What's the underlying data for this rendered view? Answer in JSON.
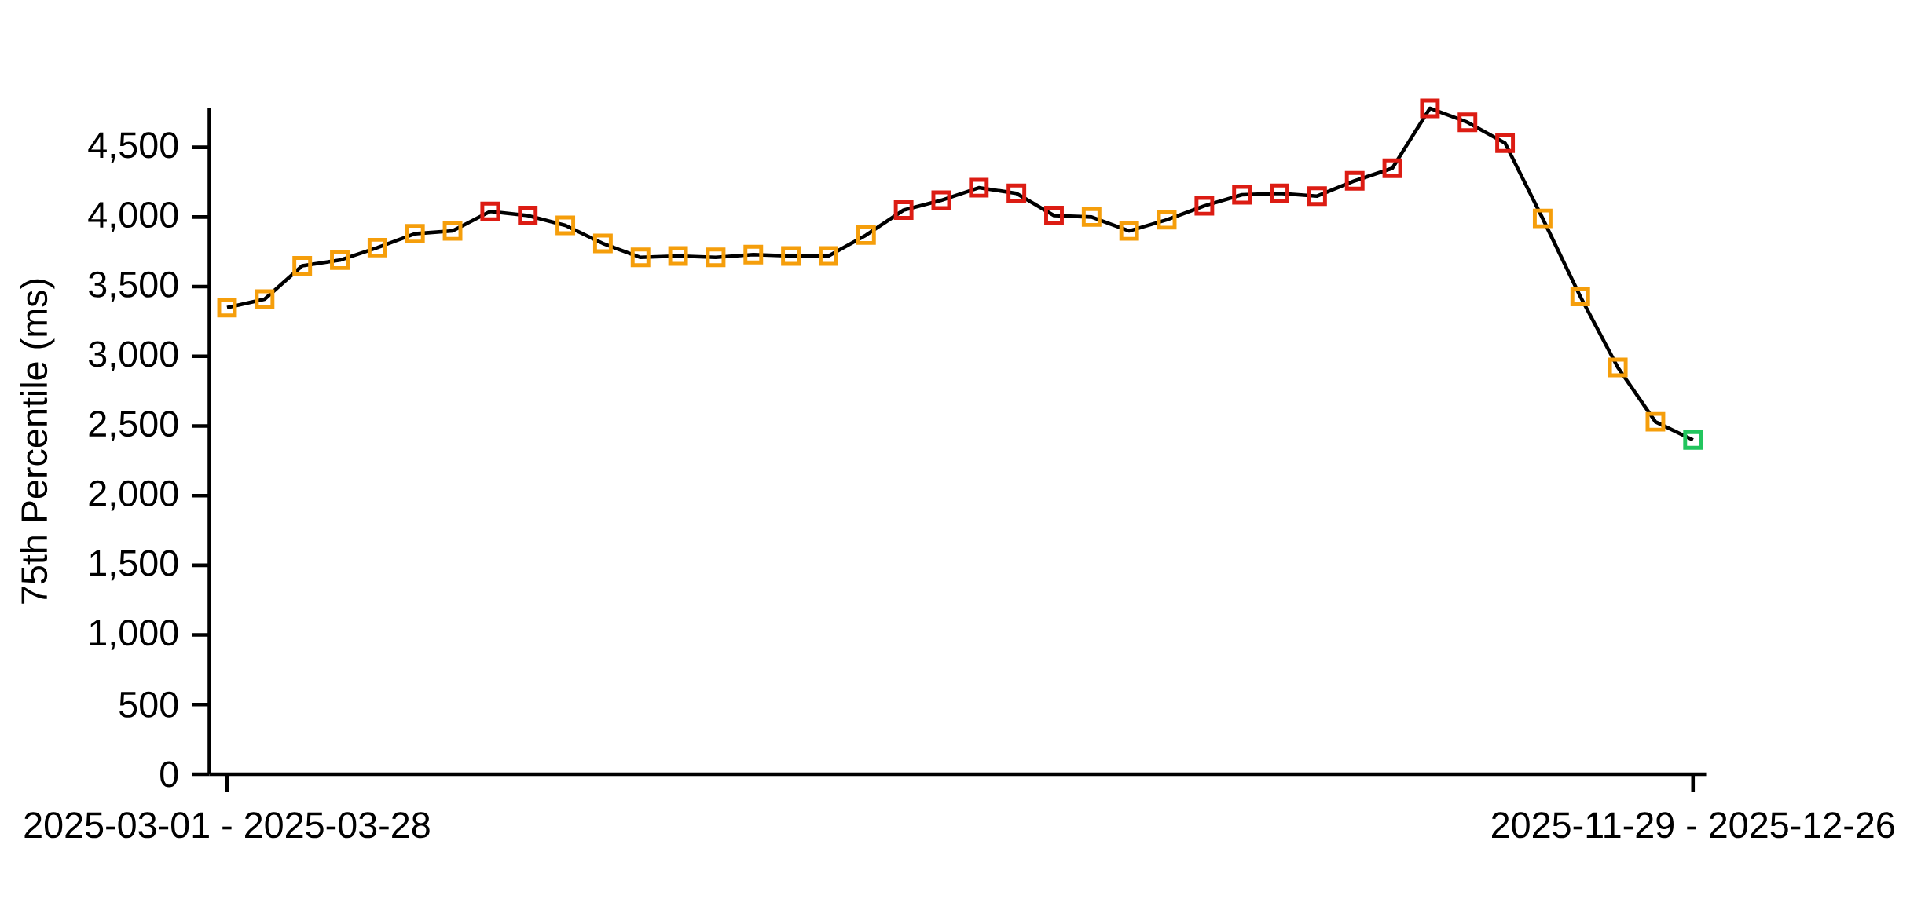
{
  "chart_data": {
    "type": "line",
    "ylabel": "75th Percentile (ms)",
    "categories": [
      "2025-03-01 - 2025-03-28",
      null,
      null,
      null,
      null,
      null,
      null,
      null,
      null,
      null,
      null,
      null,
      null,
      null,
      null,
      null,
      null,
      null,
      null,
      null,
      null,
      null,
      null,
      null,
      null,
      null,
      null,
      null,
      null,
      null,
      null,
      null,
      null,
      null,
      null,
      null,
      null,
      null,
      null,
      "2025-11-29 - 2025-12-26"
    ],
    "values": [
      3350,
      3410,
      3650,
      3690,
      3780,
      3880,
      3900,
      4040,
      4010,
      3940,
      3810,
      3710,
      3720,
      3710,
      3730,
      3720,
      3720,
      3870,
      4050,
      4120,
      4210,
      4170,
      4010,
      4000,
      3900,
      3980,
      4080,
      4160,
      4170,
      4150,
      4260,
      4350,
      4780,
      4680,
      4530,
      3990,
      3430,
      2920,
      2530,
      2400
    ],
    "color": "#000000",
    "colors": [
      "#f59e0b",
      "#f59e0b",
      "#f59e0b",
      "#f59e0b",
      "#f59e0b",
      "#f59e0b",
      "#f59e0b",
      "#dc1c13",
      "#dc1c13",
      "#f59e0b",
      "#f59e0b",
      "#f59e0b",
      "#f59e0b",
      "#f59e0b",
      "#f59e0b",
      "#f59e0b",
      "#f59e0b",
      "#f59e0b",
      "#dc1c13",
      "#dc1c13",
      "#dc1c13",
      "#dc1c13",
      "#dc1c13",
      "#f59e0b",
      "#f59e0b",
      "#f59e0b",
      "#dc1c13",
      "#dc1c13",
      "#dc1c13",
      "#dc1c13",
      "#dc1c13",
      "#dc1c13",
      "#dc1c13",
      "#dc1c13",
      "#dc1c13",
      "#f59e0b",
      "#f59e0b",
      "#f59e0b",
      "#f59e0b",
      "#22c55e"
    ],
    "ylim": [
      0,
      4780
    ],
    "yticks": [
      0,
      500,
      {
        "value": 1000,
        "label": "1,000"
      },
      {
        "value": 1500,
        "label": "1,500"
      },
      {
        "value": 2000,
        "label": "2,000"
      },
      {
        "value": 2500,
        "label": "2,500"
      },
      {
        "value": 3000,
        "label": "3,000"
      },
      {
        "value": 3500,
        "label": "3,500"
      },
      {
        "value": 4000,
        "label": "4,000"
      },
      {
        "value": 4500,
        "label": "4,500"
      }
    ],
    "marker": "square",
    "line_style": "solid",
    "grid": false
  }
}
